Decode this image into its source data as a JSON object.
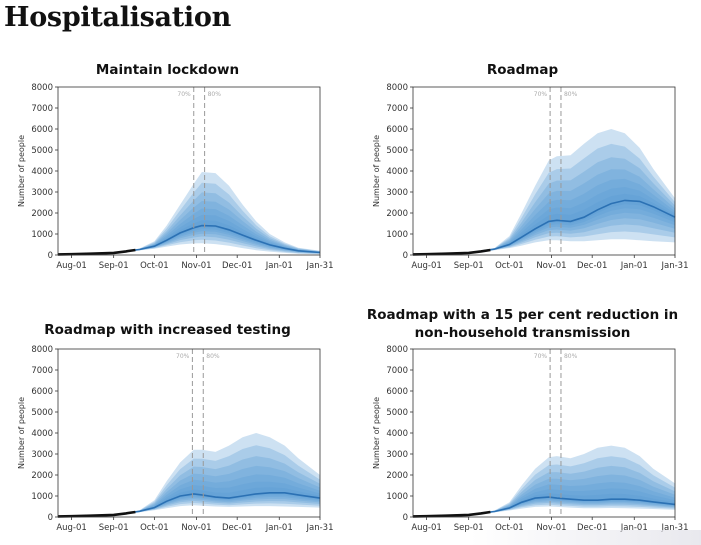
{
  "page": {
    "title": "Hospitalisation"
  },
  "colors": {
    "band": "#5b9bd5",
    "median": "#2b71b4",
    "observed": "#111111",
    "axis": "#333333",
    "marker": "#999999"
  },
  "chart_data": [
    {
      "type": "area",
      "title": "Maintain lockdown",
      "xlabel": "",
      "ylabel": "Number of people",
      "xlim": [
        "Jul-22",
        "Jan-31"
      ],
      "ylim": [
        0,
        8000
      ],
      "yticks": [
        0,
        1000,
        2000,
        3000,
        4000,
        5000,
        6000,
        7000,
        8000
      ],
      "xticks": [
        "Aug-01",
        "Sep-01",
        "Oct-01",
        "Nov-01",
        "Dec-01",
        "Jan-01",
        "Jan-31"
      ],
      "vlines": [
        {
          "x": "Oct-30",
          "label": "70%"
        },
        {
          "x": "Nov-07",
          "label": "80%"
        }
      ],
      "x": [
        "Sep-10",
        "Sep-20",
        "Oct-01",
        "Oct-10",
        "Oct-20",
        "Oct-30",
        "Nov-05",
        "Nov-15",
        "Nov-25",
        "Dec-05",
        "Dec-15",
        "Dec-25",
        "Jan-05",
        "Jan-15",
        "Jan-31"
      ],
      "median": [
        180,
        260,
        420,
        700,
        1050,
        1300,
        1400,
        1380,
        1200,
        950,
        700,
        480,
        320,
        200,
        120
      ],
      "upper": [
        200,
        310,
        650,
        1400,
        2400,
        3400,
        3950,
        3900,
        3300,
        2400,
        1600,
        1000,
        600,
        350,
        200
      ],
      "lower": [
        160,
        220,
        300,
        400,
        500,
        550,
        560,
        520,
        440,
        330,
        230,
        160,
        100,
        60,
        40
      ],
      "observed": {
        "x": [
          "Aug-01",
          "Aug-15",
          "Sep-01",
          "Sep-10",
          "Sep-17"
        ],
        "y": [
          40,
          60,
          100,
          170,
          240
        ]
      }
    },
    {
      "type": "area",
      "title": "Roadmap",
      "xlabel": "",
      "ylabel": "Number of people",
      "xlim": [
        "Jul-22",
        "Jan-31"
      ],
      "ylim": [
        0,
        8000
      ],
      "yticks": [
        0,
        1000,
        2000,
        3000,
        4000,
        5000,
        6000,
        7000,
        8000
      ],
      "xticks": [
        "Aug-01",
        "Sep-01",
        "Oct-01",
        "Nov-01",
        "Dec-01",
        "Jan-01",
        "Jan-31"
      ],
      "vlines": [
        {
          "x": "Oct-31",
          "label": "70%"
        },
        {
          "x": "Nov-08",
          "label": "80%"
        }
      ],
      "x": [
        "Sep-10",
        "Sep-20",
        "Oct-01",
        "Oct-10",
        "Oct-20",
        "Oct-30",
        "Nov-05",
        "Nov-15",
        "Nov-25",
        "Dec-05",
        "Dec-15",
        "Dec-25",
        "Jan-05",
        "Jan-15",
        "Jan-31"
      ],
      "median": [
        180,
        280,
        500,
        850,
        1250,
        1600,
        1650,
        1600,
        1800,
        2150,
        2450,
        2600,
        2550,
        2300,
        1800
      ],
      "upper": [
        200,
        330,
        900,
        2000,
        3300,
        4500,
        4700,
        4750,
        5300,
        5800,
        6000,
        5800,
        5100,
        4100,
        2700
      ],
      "lower": [
        160,
        230,
        330,
        450,
        600,
        700,
        700,
        650,
        650,
        700,
        750,
        750,
        700,
        650,
        600
      ],
      "observed": {
        "x": [
          "Aug-01",
          "Aug-15",
          "Sep-01",
          "Sep-10",
          "Sep-17"
        ],
        "y": [
          40,
          60,
          100,
          170,
          240
        ]
      }
    },
    {
      "type": "area",
      "title": "Roadmap with increased testing",
      "xlabel": "",
      "ylabel": "Number of people",
      "xlim": [
        "Jul-22",
        "Jan-31"
      ],
      "ylim": [
        0,
        8000
      ],
      "yticks": [
        0,
        1000,
        2000,
        3000,
        4000,
        5000,
        6000,
        7000,
        8000
      ],
      "xticks": [
        "Aug-01",
        "Sep-01",
        "Oct-01",
        "Nov-01",
        "Dec-01",
        "Jan-01",
        "Jan-31"
      ],
      "vlines": [
        {
          "x": "Oct-29",
          "label": "70%"
        },
        {
          "x": "Nov-06",
          "label": "80%"
        }
      ],
      "x": [
        "Sep-10",
        "Sep-20",
        "Oct-01",
        "Oct-10",
        "Oct-20",
        "Oct-30",
        "Nov-05",
        "Nov-15",
        "Nov-25",
        "Dec-05",
        "Dec-15",
        "Dec-25",
        "Jan-05",
        "Jan-15",
        "Jan-31"
      ],
      "median": [
        180,
        270,
        450,
        750,
        1000,
        1100,
        1050,
        950,
        900,
        1000,
        1100,
        1150,
        1150,
        1050,
        900
      ],
      "upper": [
        200,
        320,
        800,
        1700,
        2600,
        3200,
        3200,
        3100,
        3400,
        3800,
        4000,
        3800,
        3400,
        2800,
        2000
      ],
      "lower": [
        160,
        230,
        320,
        420,
        520,
        560,
        540,
        500,
        480,
        500,
        520,
        520,
        500,
        480,
        450
      ],
      "observed": {
        "x": [
          "Aug-01",
          "Aug-15",
          "Sep-01",
          "Sep-10",
          "Sep-17"
        ],
        "y": [
          40,
          60,
          100,
          170,
          240
        ]
      }
    },
    {
      "type": "area",
      "title": "Roadmap with a 15 per cent reduction in non-household transmission",
      "title_lines": [
        "Roadmap with a 15 per cent reduction in",
        "non-household transmission"
      ],
      "xlabel": "",
      "ylabel": "Number of people",
      "xlim": [
        "Jul-22",
        "Jan-31"
      ],
      "ylim": [
        0,
        8000
      ],
      "yticks": [
        0,
        1000,
        2000,
        3000,
        4000,
        5000,
        6000,
        7000,
        8000
      ],
      "xticks": [
        "Aug-01",
        "Sep-01",
        "Oct-01",
        "Nov-01",
        "Dec-01",
        "Jan-01",
        "Jan-31"
      ],
      "vlines": [
        {
          "x": "Oct-31",
          "label": "70%"
        },
        {
          "x": "Nov-08",
          "label": "80%"
        }
      ],
      "x": [
        "Sep-10",
        "Sep-20",
        "Oct-01",
        "Oct-10",
        "Oct-20",
        "Oct-30",
        "Nov-05",
        "Nov-15",
        "Nov-25",
        "Dec-05",
        "Dec-15",
        "Dec-25",
        "Jan-05",
        "Jan-15",
        "Jan-31"
      ],
      "median": [
        180,
        260,
        430,
        700,
        900,
        950,
        900,
        850,
        800,
        800,
        850,
        850,
        800,
        720,
        600
      ],
      "upper": [
        200,
        310,
        700,
        1500,
        2300,
        2850,
        2900,
        2800,
        3000,
        3300,
        3400,
        3300,
        2900,
        2300,
        1600
      ],
      "lower": [
        160,
        220,
        310,
        400,
        480,
        500,
        480,
        450,
        420,
        420,
        430,
        420,
        400,
        380,
        340
      ],
      "observed": {
        "x": [
          "Aug-01",
          "Aug-15",
          "Sep-01",
          "Sep-10",
          "Sep-17"
        ],
        "y": [
          40,
          60,
          100,
          170,
          240
        ]
      }
    }
  ]
}
